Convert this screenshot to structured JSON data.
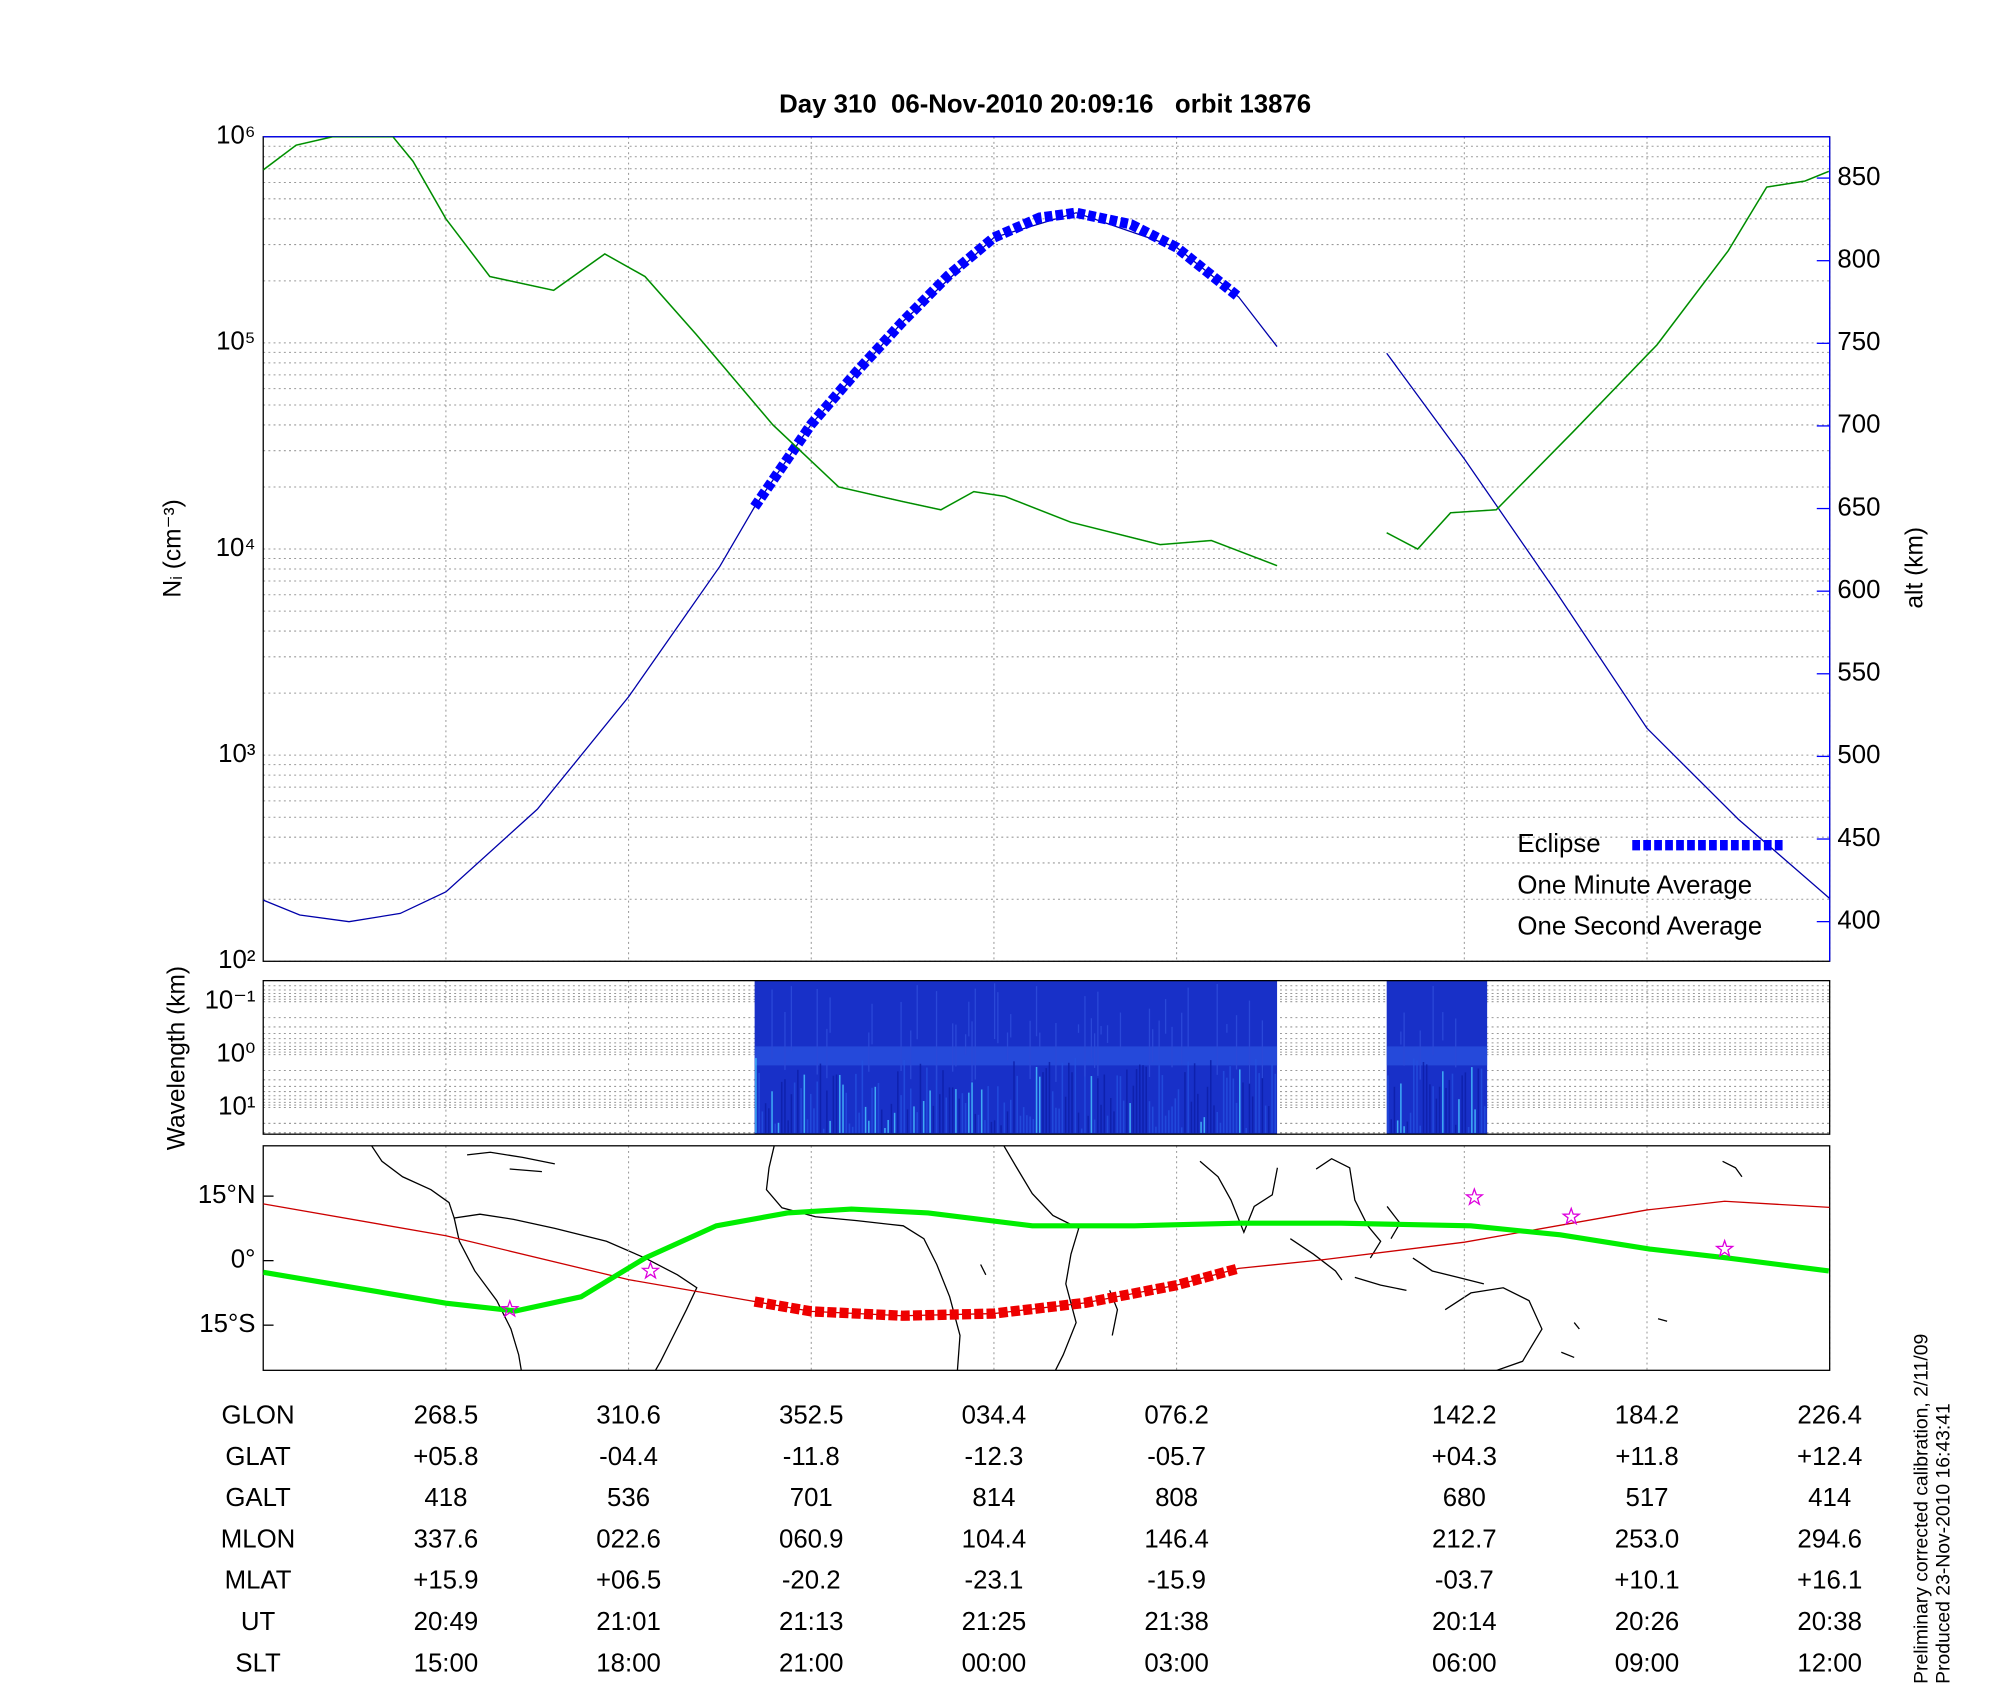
{
  "chart_data": [
    {
      "type": "line",
      "title": "Day 310  06-Nov-2010 20:09:16   orbit 13876",
      "xlim": [
        0,
        8.575
      ],
      "xticks": [
        1,
        2,
        3,
        4,
        5,
        6.575,
        7.575,
        8.575
      ],
      "ylim": [
        100,
        1000000
      ],
      "log_y": true,
      "yticks": [
        {
          "value": 100,
          "label": "10²"
        },
        {
          "value": 1000,
          "label": "10³"
        },
        {
          "value": 10000,
          "label": "10⁴"
        },
        {
          "value": 100000,
          "label": "10⁵"
        },
        {
          "value": 1000000,
          "label": "10⁶"
        }
      ],
      "ylabel": "Nᵢ (cm⁻³)",
      "y2lim": [
        376,
        875
      ],
      "y2ticks": [
        400,
        450,
        500,
        550,
        600,
        650,
        700,
        750,
        800,
        850
      ],
      "y2label": "alt (km)",
      "y2color": "#0000ff",
      "grid": true,
      "legend": "lower right",
      "series": [
        {
          "color": "#0000aa",
          "axis": "y2",
          "style": "thin",
          "x": [
            0,
            0.2,
            0.47,
            0.75,
            1,
            1.5,
            2,
            2.5,
            2.69,
            3,
            3.5,
            4,
            4.45,
            5,
            5.34,
            5.55,
            5.85,
            6.15,
            6.575,
            7.075,
            7.575,
            8.075,
            8.575
          ],
          "values": [
            413,
            404,
            400,
            405,
            418,
            468,
            536,
            615,
            651,
            701,
            763,
            814,
            829,
            808,
            778,
            748,
            null,
            744,
            680,
            600,
            517,
            462,
            414
          ]
        },
        {
          "name": "Eclipse",
          "color": "#0000ff",
          "axis": "y2",
          "style": "thick-dashed",
          "x": [
            2.69,
            3,
            3.25,
            3.5,
            3.75,
            4,
            4.25,
            4.45,
            4.75,
            5,
            5.34
          ],
          "values": [
            651,
            701,
            733,
            763,
            791,
            814,
            826,
            829,
            822,
            808,
            778
          ]
        },
        {
          "name": "One Minute Average",
          "color": "#000000",
          "style": "thin",
          "x": [
            0,
            0.18,
            0.38,
            0.71,
            0.82,
            1.0,
            1.24,
            1.59,
            1.87,
            2.09,
            2.37,
            2.79,
            3.15,
            3.5,
            3.71,
            3.89,
            4.06,
            4.42,
            4.91,
            5.19,
            5.55,
            5.85,
            6.15,
            6.32,
            6.5,
            6.75,
            7.17,
            7.63,
            8.02,
            8.23,
            8.44,
            8.57
          ],
          "values": [
            690000,
            910000,
            1000000,
            1000000,
            760000,
            400000,
            210000,
            180000,
            270000,
            210000,
            110000,
            40000,
            20000,
            17000,
            15500,
            19000,
            18000,
            13500,
            10500,
            11000,
            8300,
            null,
            12000,
            10000,
            15000,
            15500,
            37000,
            98000,
            280000,
            570000,
            610000,
            680000
          ]
        },
        {
          "name": "One Second Average",
          "color": "#00dd00",
          "style": "overlay",
          "x": [
            0,
            0.18,
            0.38,
            0.71,
            0.82,
            1.0,
            1.24,
            1.59,
            1.87,
            2.09,
            2.37,
            2.79,
            3.15,
            3.5,
            3.71,
            3.89,
            4.06,
            4.42,
            4.91,
            5.19,
            5.55,
            5.85,
            6.15,
            6.32,
            6.5,
            6.75,
            7.17,
            7.63,
            8.02,
            8.23,
            8.44,
            8.57
          ],
          "values": [
            690000,
            910000,
            1000000,
            1000000,
            760000,
            400000,
            210000,
            180000,
            270000,
            210000,
            110000,
            40000,
            20000,
            17000,
            15500,
            19000,
            18000,
            13500,
            10500,
            11000,
            8300,
            null,
            12000,
            10000,
            15000,
            15500,
            37000,
            98000,
            280000,
            570000,
            610000,
            680000
          ]
        }
      ]
    },
    {
      "type": "spectrogram",
      "ylabel": "Wavelength (km)",
      "xlim": [
        0,
        8.575
      ],
      "xticks": [
        1,
        2,
        3,
        4,
        5,
        6.575,
        7.575,
        8.575
      ],
      "ylim": [
        0.04,
        32
      ],
      "log_y": true,
      "y_reversed": true,
      "yticks": [
        {
          "value": 0.1,
          "label": "10⁻¹"
        },
        {
          "value": 1,
          "label": "10⁰"
        },
        {
          "value": 10,
          "label": "10¹"
        }
      ],
      "color": "#1830c8",
      "segments": [
        {
          "x": [
            2.69,
            5.55
          ]
        },
        {
          "x": [
            6.15,
            6.7
          ]
        }
      ]
    },
    {
      "type": "map",
      "xlim": [
        0,
        8.575
      ],
      "xticks": [
        1,
        2,
        3,
        4,
        5,
        6.575,
        7.575,
        8.575
      ],
      "ylim": [
        -25.5,
        26.7
      ],
      "yticks": [
        {
          "value": 15,
          "label": "15°N"
        },
        {
          "value": 0,
          "label": "0°"
        },
        {
          "value": -15,
          "label": "15°S"
        }
      ],
      "series": [
        {
          "color": "#cc0000",
          "style": "thin",
          "x": [
            0,
            1,
            2,
            2.69,
            3,
            3.5,
            4,
            4.5,
            5,
            5.34,
            5.8,
            6.575,
            7.575,
            8.0,
            8.575
          ],
          "values": [
            13.2,
            5.8,
            -4.4,
            -9.5,
            -11.8,
            -12.8,
            -12.3,
            -9.8,
            -5.7,
            -1.8,
            0.2,
            4.3,
            11.8,
            13.8,
            12.4
          ]
        },
        {
          "color": "#ee0000",
          "style": "thick-dashed",
          "x": [
            2.69,
            3,
            3.5,
            4,
            4.5,
            5,
            5.34
          ],
          "values": [
            -9.5,
            -11.8,
            -12.8,
            -12.3,
            -9.8,
            -5.7,
            -1.8
          ]
        },
        {
          "color": "#00ee00",
          "style": "thick",
          "x": [
            0,
            1,
            1.38,
            1.74,
            2.09,
            2.48,
            2.87,
            3.22,
            3.64,
            4.21,
            4.77,
            5.34,
            5.9,
            6.61,
            7.1,
            7.59,
            8.02,
            8.57
          ],
          "values": [
            -2.7,
            -9.9,
            -11.7,
            -8.4,
            0.6,
            8.1,
            11.1,
            12,
            11.1,
            8.1,
            8.1,
            8.7,
            8.7,
            8.1,
            6,
            2.7,
            0.6,
            -2.4
          ]
        },
        {
          "color": "#dd00dd",
          "style": "stars",
          "x": [
            1.35,
            2.12,
            6.63,
            7.16,
            8.0
          ],
          "values": [
            -11.3,
            -2.4,
            14.7,
            10.2,
            2.7
          ]
        }
      ]
    }
  ],
  "table": {
    "rows": [
      {
        "label": "GLON",
        "cells": [
          "268.5",
          "310.6",
          "352.5",
          "034.4",
          "076.2",
          "142.2",
          "184.2",
          "226.4"
        ]
      },
      {
        "label": "GLAT",
        "cells": [
          "+05.8",
          "-04.4",
          "-11.8",
          "-12.3",
          "-05.7",
          "+04.3",
          "+11.8",
          "+12.4"
        ]
      },
      {
        "label": "GALT",
        "cells": [
          "418",
          "536",
          "701",
          "814",
          "808",
          "680",
          "517",
          "414"
        ]
      },
      {
        "label": "MLON",
        "cells": [
          "337.6",
          "022.6",
          "060.9",
          "104.4",
          "146.4",
          "212.7",
          "253.0",
          "294.6"
        ]
      },
      {
        "label": "MLAT",
        "cells": [
          "+15.9",
          "+06.5",
          "-20.2",
          "-23.1",
          "-15.9",
          "-03.7",
          "+10.1",
          "+16.1"
        ]
      },
      {
        "label": "UT",
        "cells": [
          "20:49",
          "21:01",
          "21:13",
          "21:25",
          "21:38",
          "20:14",
          "20:26",
          "20:38"
        ]
      },
      {
        "label": "SLT",
        "cells": [
          "15:00",
          "18:00",
          "21:00",
          "00:00",
          "03:00",
          "06:00",
          "09:00",
          "12:00"
        ]
      }
    ]
  },
  "notes": [
    "Preliminary corrected calibration, 2/11/09",
    "Produced 23-Nov-2010 16:43:41"
  ]
}
